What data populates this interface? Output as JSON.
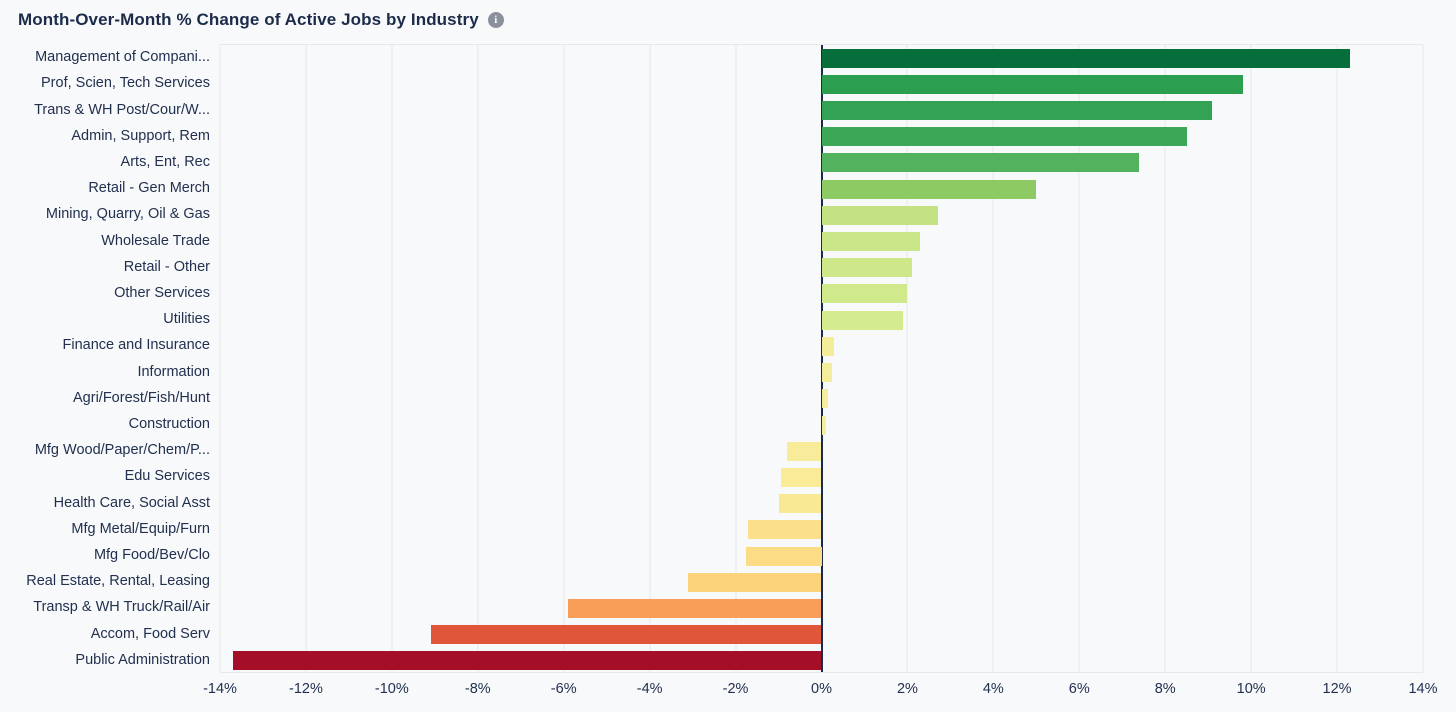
{
  "header": {
    "title": "Month-Over-Month % Change of Active Jobs by Industry",
    "info_icon_glyph": "i"
  },
  "chart_data": {
    "type": "bar",
    "orientation": "horizontal",
    "title": "Month-Over-Month % Change of Active Jobs by Industry",
    "xlabel": "",
    "ylabel": "",
    "xlim": [
      -14,
      14
    ],
    "grid": true,
    "legend": false,
    "background_color": "#f8f9fa",
    "gridline_color": "#e6e8ea",
    "zero_line_color": "#1b2a4a",
    "axis_text_color": "#22304f",
    "x_ticks": [
      -14,
      -12,
      -10,
      -8,
      -6,
      -4,
      -2,
      0,
      2,
      4,
      6,
      8,
      10,
      12,
      14
    ],
    "x_tick_labels": [
      "-14%",
      "-12%",
      "-10%",
      "-8%",
      "-6%",
      "-4%",
      "-2%",
      "0%",
      "2%",
      "4%",
      "6%",
      "8%",
      "10%",
      "12%",
      "14%"
    ],
    "categories": [
      "Management of Compani...",
      "Prof, Scien, Tech Services",
      "Trans & WH Post/Cour/W...",
      "Admin, Support, Rem",
      "Arts, Ent, Rec",
      "Retail - Gen Merch",
      "Mining, Quarry, Oil & Gas",
      "Wholesale Trade",
      "Retail - Other",
      "Other Services",
      "Utilities",
      "Finance and Insurance",
      "Information",
      "Agri/Forest/Fish/Hunt",
      "Construction",
      "Mfg Wood/Paper/Chem/P...",
      "Edu Services",
      "Health Care, Social Asst",
      "Mfg Metal/Equip/Furn",
      "Mfg Food/Bev/Clo",
      "Real Estate, Rental, Leasing",
      "Transp & WH Truck/Rail/Air",
      "Accom, Food Serv",
      "Public Administration"
    ],
    "values": [
      12.3,
      9.8,
      9.1,
      8.5,
      7.4,
      5.0,
      2.7,
      2.3,
      2.1,
      2.0,
      1.9,
      0.3,
      0.25,
      0.15,
      0.1,
      -0.8,
      -0.95,
      -1.0,
      -1.7,
      -1.75,
      -3.1,
      -5.9,
      -9.1,
      -13.7
    ],
    "colors": [
      "#066e3b",
      "#2c9e50",
      "#34a254",
      "#3ba757",
      "#53b25e",
      "#8eca63",
      "#c4e283",
      "#cbe687",
      "#cee889",
      "#d0e98b",
      "#d4eb8e",
      "#f2ec9b",
      "#f3ed9d",
      "#f5ee9e",
      "#f6efa0",
      "#f8ec9a",
      "#f9eb97",
      "#f9e994",
      "#fcdf8a",
      "#fcdd86",
      "#fbd37b",
      "#f99e59",
      "#e0563a",
      "#a40e26"
    ]
  }
}
